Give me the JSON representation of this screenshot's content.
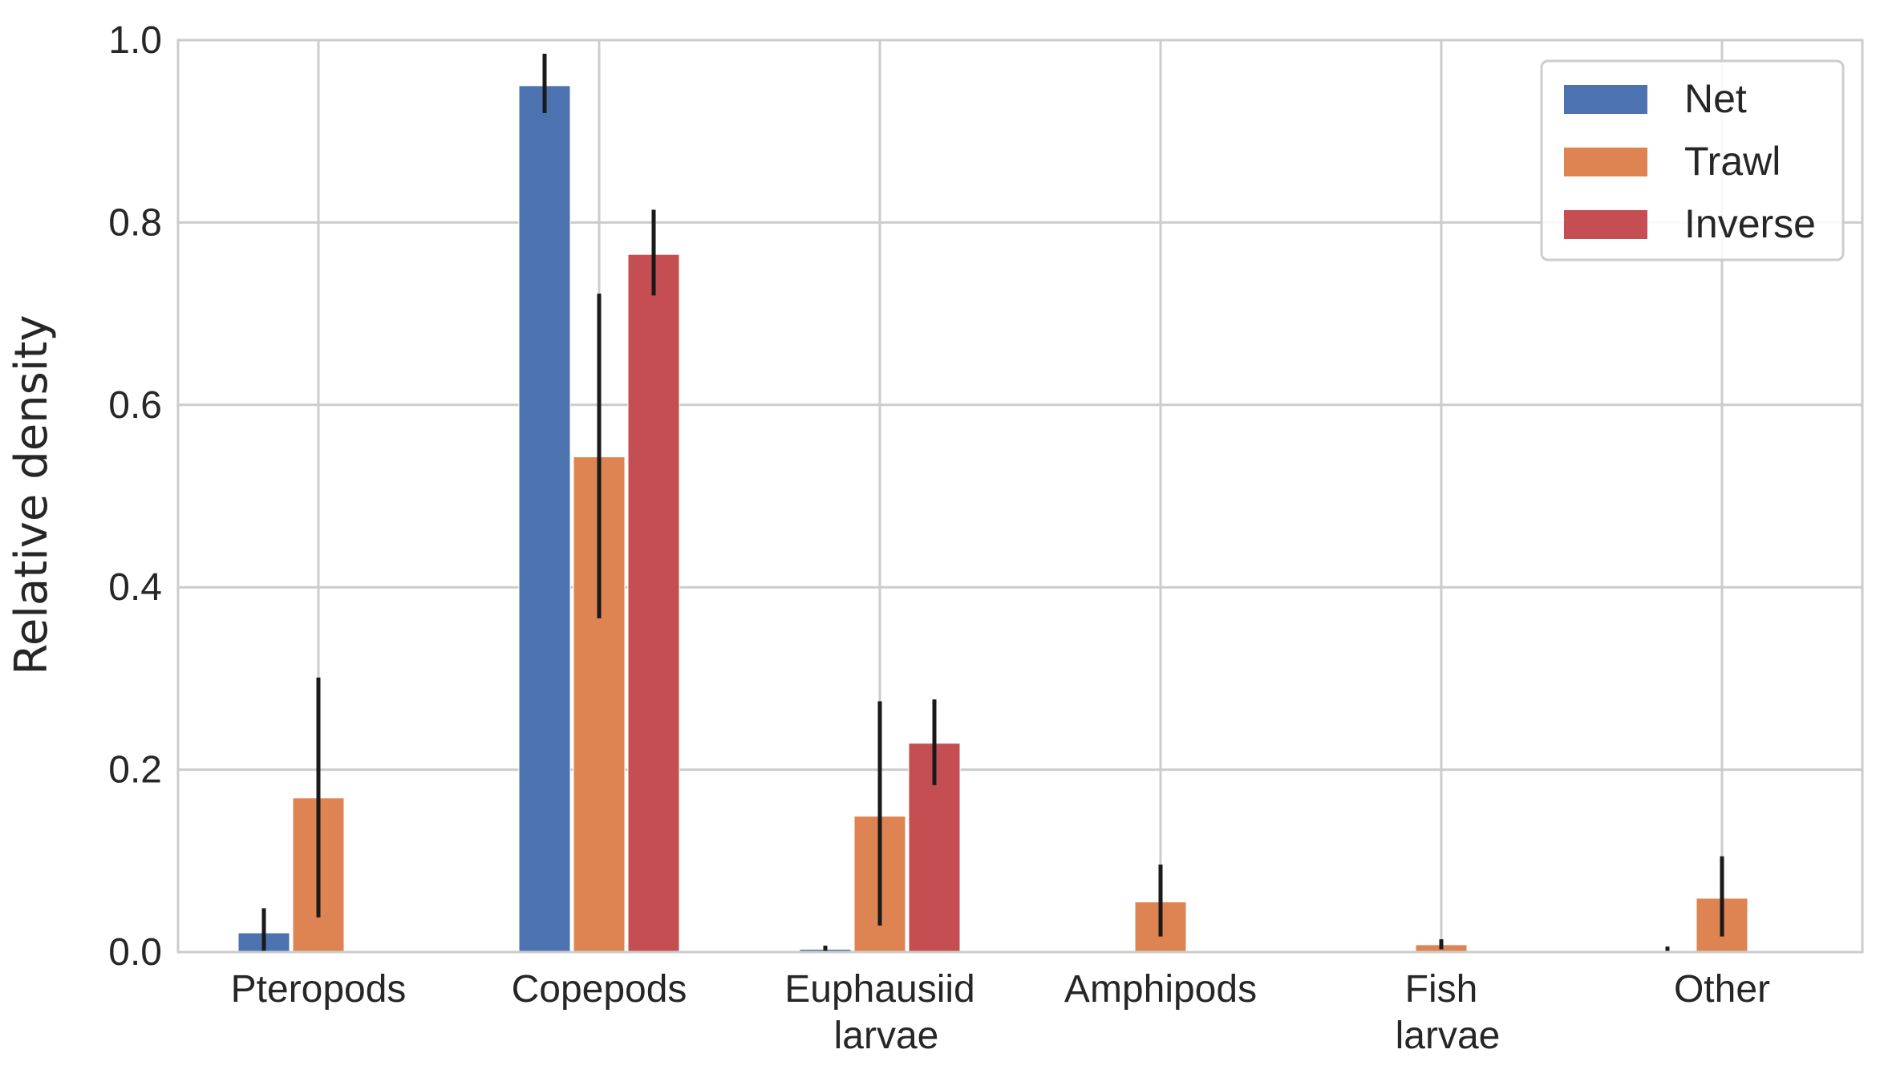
{
  "chart_data": {
    "type": "bar",
    "title": "",
    "xlabel": "",
    "ylabel": "Relative density",
    "ylim": [
      0,
      1.0
    ],
    "yticks": [
      "0.0",
      "0.2",
      "0.4",
      "0.6",
      "0.8",
      "1.0"
    ],
    "grid": true,
    "legend_position": "top-right",
    "categories": [
      [
        "Pteropods"
      ],
      [
        "Copepods"
      ],
      [
        "Euphausiid",
        "larvae"
      ],
      [
        "Amphipods"
      ],
      [
        "Fish",
        "larvae"
      ],
      [
        "Other"
      ]
    ],
    "series": [
      {
        "name": "Net",
        "color": "#4c72b0",
        "values": [
          0.021,
          0.95,
          0.003,
          0.0,
          0.0,
          0.0
        ],
        "error_low": [
          0.0,
          0.92,
          0.0,
          null,
          null,
          0.0
        ],
        "error_high": [
          0.048,
          0.985,
          0.007,
          null,
          null,
          0.006
        ]
      },
      {
        "name": "Trawl",
        "color": "#dd8452",
        "values": [
          0.169,
          0.543,
          0.149,
          0.055,
          0.008,
          0.059
        ],
        "error_low": [
          0.038,
          0.366,
          0.029,
          0.017,
          0.003,
          0.017
        ],
        "error_high": [
          0.301,
          0.722,
          0.275,
          0.096,
          0.014,
          0.105
        ]
      },
      {
        "name": "Inverse",
        "color": "#c44e52",
        "values": [
          0.0,
          0.765,
          0.229,
          0.001,
          0.0,
          0.0
        ],
        "error_low": [
          null,
          0.72,
          0.183,
          null,
          null,
          null
        ],
        "error_high": [
          null,
          0.814,
          0.277,
          null,
          null,
          null
        ]
      }
    ]
  }
}
